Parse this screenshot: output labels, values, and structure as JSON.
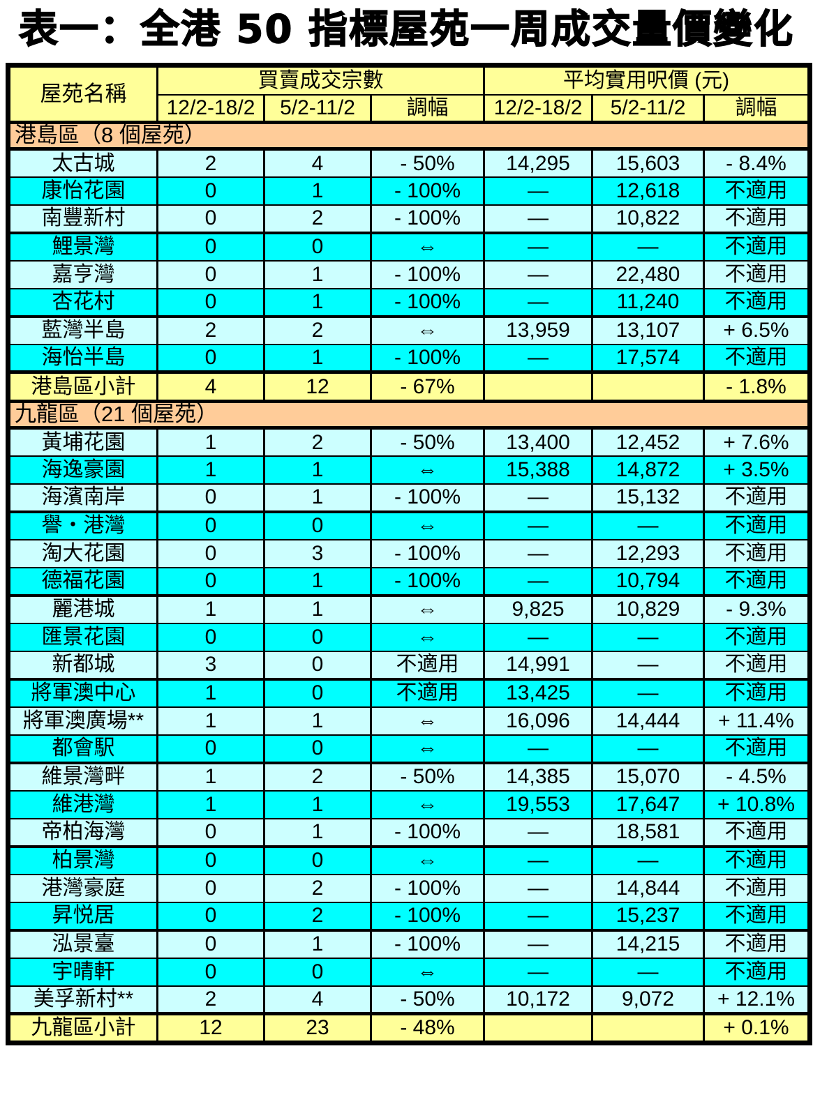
{
  "title": "表一：全港 50 指標屋苑一周成交量價變化",
  "columns": {
    "estate": "屋苑名稱",
    "transactions_group": "買賣成交宗數",
    "price_group": "平均實用呎價 (元)",
    "period_current": "12/2-18/2",
    "period_previous": "5/2-11/2",
    "change": "調幅"
  },
  "cell_keys": [
    "tx-current",
    "tx-previous",
    "tx-change",
    "price-current",
    "price-previous",
    "price-change"
  ],
  "sections": [
    {
      "label": "港島區（8 個屋苑）",
      "rows": [
        {
          "name": "太古城",
          "cells": [
            "2",
            "4",
            "- 50%",
            "14,295",
            "15,603",
            "- 8.4%"
          ]
        },
        {
          "name": "康怡花園",
          "cells": [
            "0",
            "1",
            "- 100%",
            "—",
            "12,618",
            "不適用"
          ]
        },
        {
          "name": "南豐新村",
          "cells": [
            "0",
            "2",
            "- 100%",
            "—",
            "10,822",
            "不適用"
          ]
        },
        {
          "name": "鯉景灣",
          "cells": [
            "0",
            "0",
            "⇔",
            "—",
            "—",
            "不適用"
          ]
        },
        {
          "name": "嘉亨灣",
          "cells": [
            "0",
            "1",
            "- 100%",
            "—",
            "22,480",
            "不適用"
          ]
        },
        {
          "name": "杏花村",
          "cells": [
            "0",
            "1",
            "- 100%",
            "—",
            "11,240",
            "不適用"
          ]
        },
        {
          "name": "藍灣半島",
          "cells": [
            "2",
            "2",
            "⇔",
            "13,959",
            "13,107",
            "+ 6.5%"
          ]
        },
        {
          "name": "海怡半島",
          "cells": [
            "0",
            "1",
            "- 100%",
            "—",
            "17,574",
            "不適用"
          ]
        }
      ],
      "subtotal": {
        "label": "港島區小計",
        "cells": [
          "4",
          "12",
          "- 67%",
          "",
          "",
          "- 1.8%"
        ]
      }
    },
    {
      "label": "九龍區（21 個屋苑）",
      "rows": [
        {
          "name": "黃埔花園",
          "cells": [
            "1",
            "2",
            "- 50%",
            "13,400",
            "12,452",
            "+ 7.6%"
          ]
        },
        {
          "name": "海逸豪園",
          "cells": [
            "1",
            "1",
            "⇔",
            "15,388",
            "14,872",
            "+ 3.5%"
          ]
        },
        {
          "name": "海濱南岸",
          "cells": [
            "0",
            "1",
            "- 100%",
            "—",
            "15,132",
            "不適用"
          ]
        },
        {
          "name": "譽・港灣",
          "cells": [
            "0",
            "0",
            "⇔",
            "—",
            "—",
            "不適用"
          ]
        },
        {
          "name": "淘大花園",
          "cells": [
            "0",
            "3",
            "- 100%",
            "—",
            "12,293",
            "不適用"
          ]
        },
        {
          "name": "德福花園",
          "cells": [
            "0",
            "1",
            "- 100%",
            "—",
            "10,794",
            "不適用"
          ]
        },
        {
          "name": "麗港城",
          "cells": [
            "1",
            "1",
            "⇔",
            "9,825",
            "10,829",
            "- 9.3%"
          ]
        },
        {
          "name": "匯景花園",
          "cells": [
            "0",
            "0",
            "⇔",
            "—",
            "—",
            "不適用"
          ]
        },
        {
          "name": "新都城",
          "cells": [
            "3",
            "0",
            "不適用",
            "14,991",
            "—",
            "不適用"
          ]
        },
        {
          "name": "將軍澳中心",
          "cells": [
            "1",
            "0",
            "不適用",
            "13,425",
            "—",
            "不適用"
          ]
        },
        {
          "name": "將軍澳廣場**",
          "cells": [
            "1",
            "1",
            "⇔",
            "16,096",
            "14,444",
            "+ 11.4%"
          ]
        },
        {
          "name": "都會駅",
          "cells": [
            "0",
            "0",
            "⇔",
            "—",
            "—",
            "不適用"
          ]
        },
        {
          "name": "維景灣畔",
          "cells": [
            "1",
            "2",
            "- 50%",
            "14,385",
            "15,070",
            "- 4.5%"
          ]
        },
        {
          "name": "維港灣",
          "cells": [
            "1",
            "1",
            "⇔",
            "19,553",
            "17,647",
            "+ 10.8%"
          ]
        },
        {
          "name": "帝柏海灣",
          "cells": [
            "0",
            "1",
            "- 100%",
            "—",
            "18,581",
            "不適用"
          ]
        },
        {
          "name": "柏景灣",
          "cells": [
            "0",
            "0",
            "⇔",
            "—",
            "—",
            "不適用"
          ]
        },
        {
          "name": "港灣豪庭",
          "cells": [
            "0",
            "2",
            "- 100%",
            "—",
            "14,844",
            "不適用"
          ]
        },
        {
          "name": "昇悦居",
          "cells": [
            "0",
            "2",
            "- 100%",
            "—",
            "15,237",
            "不適用"
          ]
        },
        {
          "name": "泓景臺",
          "cells": [
            "0",
            "1",
            "- 100%",
            "—",
            "14,215",
            "不適用"
          ]
        },
        {
          "name": "宇晴軒",
          "cells": [
            "0",
            "0",
            "⇔",
            "—",
            "—",
            "不適用"
          ]
        },
        {
          "name": "美孚新村**",
          "cells": [
            "2",
            "4",
            "- 50%",
            "10,172",
            "9,072",
            "+ 12.1%"
          ]
        }
      ],
      "subtotal": {
        "label": "九龍區小計",
        "cells": [
          "12",
          "23",
          "- 48%",
          "",
          "",
          "+ 0.1%"
        ]
      }
    }
  ],
  "colors": {
    "header_bg": "#FFFF99",
    "section_bg": "#FFCC99",
    "row_light": "#CCFFFF",
    "row_bright": "#00FFFF",
    "subtotal_bg": "#FFFF99",
    "border": "#000000"
  }
}
